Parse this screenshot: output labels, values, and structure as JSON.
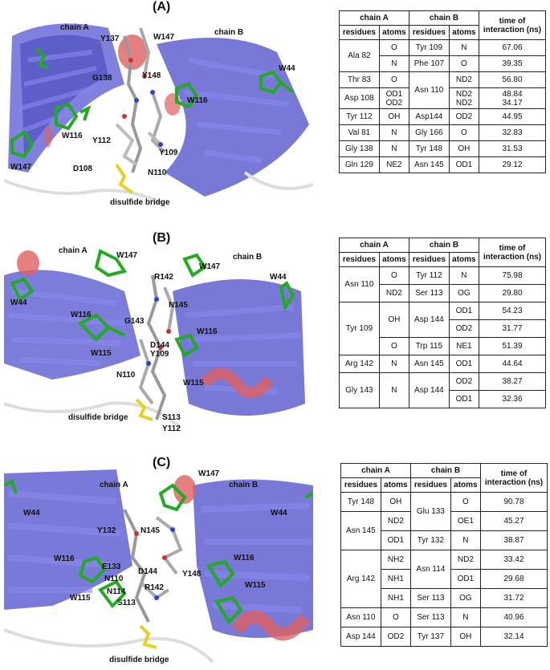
{
  "panels": [
    {
      "label": "(A)",
      "structure": {
        "chainLeft": "chain A",
        "chainRight": "chain B",
        "bridge": "disulfide bridge",
        "residues": [
          "Y137",
          "W147",
          "G138",
          "Y148",
          "W116",
          "W116",
          "Y112",
          "Y109",
          "W147",
          "D108",
          "N110",
          "W44"
        ]
      },
      "table": {
        "group_headers": [
          "chain A",
          "chain B",
          "time of interaction (ns)"
        ],
        "sub_headers": [
          "residues",
          "atoms",
          "residues",
          "atoms"
        ],
        "rows": [
          [
            "Ala 82",
            "O",
            "Tyr 109",
            "N",
            "67.06"
          ],
          [
            "",
            "N",
            "Phe 107",
            "O",
            "39.35"
          ],
          [
            "Thr 83",
            "O",
            "Asn 110",
            "ND2",
            "56.80"
          ],
          [
            "Asp 108",
            "OD1\nOD2",
            "",
            "ND2\nND2",
            "48.84\n34.17"
          ],
          [
            "Tyr 112",
            "OH",
            "Asp144",
            "OD2",
            "44.95"
          ],
          [
            "Val 81",
            "N",
            "Gly 166",
            "O",
            "32.83"
          ],
          [
            "Gly 138",
            "N",
            "Tyr 148",
            "OH",
            "31.53"
          ],
          [
            "Gln 129",
            "NE2",
            "Asn 145",
            "OD1",
            "29.12"
          ]
        ]
      }
    },
    {
      "label": "(B)",
      "structure": {
        "chainLeft": "chain A",
        "chainRight": "chain B",
        "bridge": "disulfide bridge",
        "residues": [
          "W147",
          "W147",
          "R142",
          "W44",
          "W44",
          "N145",
          "W116",
          "G143",
          "W116",
          "D144",
          "W115",
          "Y109",
          "N110",
          "W115",
          "S113",
          "Y112"
        ]
      },
      "table": {
        "group_headers": [
          "chain A",
          "chain B",
          "time of interaction (ns)"
        ],
        "sub_headers": [
          "residues",
          "atoms",
          "residues",
          "atoms"
        ],
        "rows": [
          [
            "Asn 110",
            "O",
            "Tyr 112",
            "N",
            "75.98"
          ],
          [
            "",
            "ND2",
            "Ser 113",
            "OG",
            "29.80"
          ],
          [
            "Tyr 109",
            "OH",
            "Asp 144",
            "OD1",
            "54.23"
          ],
          [
            "",
            "",
            "",
            "OD2",
            "31.77"
          ],
          [
            "",
            "O",
            "Trp 115",
            "NE1",
            "51.39"
          ],
          [
            "Arg 142",
            "N",
            "Asn 145",
            "OD1",
            "44.64"
          ],
          [
            "Gly 143",
            "N",
            "Asp 144",
            "OD2",
            "38.27"
          ],
          [
            "",
            "",
            "",
            "OD1",
            "32.36"
          ]
        ]
      }
    },
    {
      "label": "(C)",
      "structure": {
        "chainLeft": "chain A",
        "chainRight": "chain B",
        "bridge": "disulfide bridge",
        "residues": [
          "W147",
          "W44",
          "W44",
          "Y132",
          "N145",
          "W116",
          "W116",
          "E133",
          "D144",
          "Y148",
          "N110",
          "R142",
          "N114",
          "W115",
          "S113",
          "W115"
        ]
      },
      "table": {
        "group_headers": [
          "chain A",
          "chain B",
          "time of interaction (ns)"
        ],
        "sub_headers": [
          "residues",
          "atoms",
          "residues",
          "atoms"
        ],
        "rows": [
          [
            "Tyr 148",
            "OH",
            "Glu 133",
            "O",
            "90.78"
          ],
          [
            "Asn 145",
            "ND2",
            "",
            "OE1",
            "45.27"
          ],
          [
            "",
            "OD1",
            "Tyr 132",
            "N",
            "38.87"
          ],
          [
            "Arg 142",
            "NH2",
            "Asn 114",
            "ND2",
            "33.42"
          ],
          [
            "",
            "NH1",
            "",
            "OD1",
            "29.68"
          ],
          [
            "",
            "NH1",
            "Ser 113",
            "OG",
            "31.72"
          ],
          [
            "Asn 110",
            "O",
            "Ser 113",
            "N",
            "40.96"
          ],
          [
            "Asp 144",
            "OD2",
            "Tyr 137",
            "OH",
            "32.14"
          ]
        ]
      }
    }
  ]
}
